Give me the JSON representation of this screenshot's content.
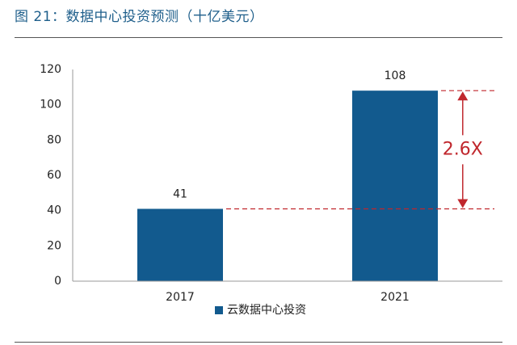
{
  "title": "图 21：数据中心投资预测（十亿美元）",
  "chart_data": {
    "type": "bar",
    "categories": [
      "2017",
      "2021"
    ],
    "series": [
      {
        "name": "云数据中心投资",
        "values": [
          41,
          108
        ],
        "color": "#125a8e"
      }
    ],
    "data_labels": [
      "41",
      "108"
    ],
    "ylim": [
      0,
      120
    ],
    "yticks": [
      0,
      20,
      40,
      60,
      80,
      100,
      120
    ],
    "ytick_labels": [
      "0",
      "20",
      "40",
      "60",
      "80",
      "100",
      "120"
    ],
    "grid": false,
    "legend_position": "bottom",
    "annotation": {
      "text": "2.6X",
      "from": 41,
      "to": 108,
      "color": "#c0272d"
    }
  }
}
